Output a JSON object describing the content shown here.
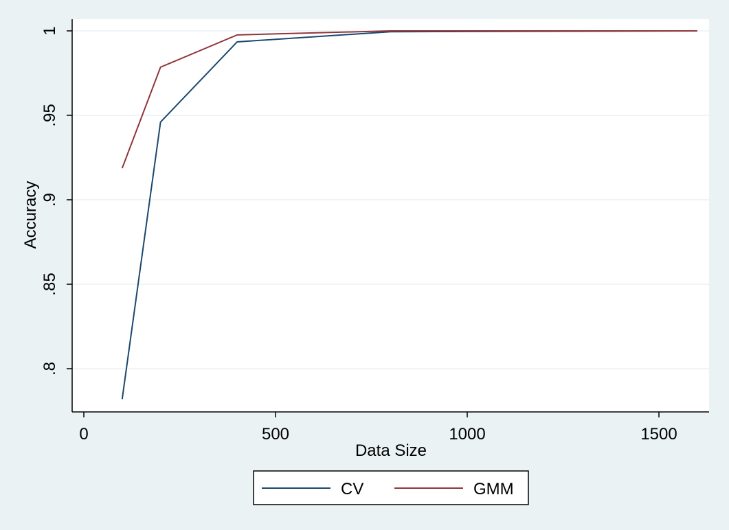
{
  "chart_data": {
    "type": "line",
    "x": [
      100,
      200,
      400,
      800,
      1600
    ],
    "series": [
      {
        "name": "CV",
        "color": "#1a476f",
        "values": [
          0.782,
          0.946,
          0.9935,
          0.9995,
          1
        ]
      },
      {
        "name": "GMM",
        "color": "#90353b",
        "values": [
          0.9187,
          0.9785,
          0.9976,
          1,
          1
        ]
      }
    ],
    "xlabel": "Data Size",
    "ylabel": "Accuracy",
    "xlim": [
      -30.5,
      1630.8
    ],
    "ylim": [
      0.7744,
      1.0069
    ],
    "xticks": [
      0,
      500,
      1000,
      1500
    ],
    "yticks": [
      {
        "value": 0.8,
        "label": ".8"
      },
      {
        "value": 0.85,
        "label": ".85"
      },
      {
        "value": 0.9,
        "label": ".9"
      },
      {
        "value": 0.95,
        "label": ".95"
      },
      1
    ],
    "grid": true,
    "legend": "bottom"
  }
}
